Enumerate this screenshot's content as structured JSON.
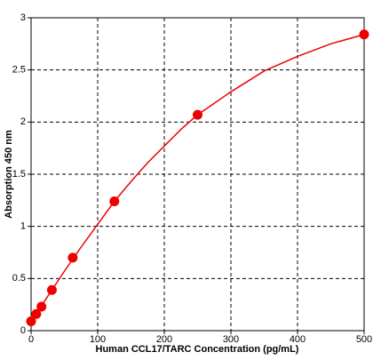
{
  "chart_data": {
    "type": "scatter",
    "xlabel": "Human CCL17/TARC Concentration  (pg/mL)",
    "ylabel": "Absorption 450 nm",
    "xlim": [
      0,
      500
    ],
    "xticks": [
      0,
      100,
      200,
      300,
      400,
      500
    ],
    "ylim": [
      0,
      3
    ],
    "yticks": [
      0,
      0.5,
      1,
      1.5,
      2,
      2.5,
      3
    ],
    "grid": true,
    "series": [
      {
        "mode": "line",
        "color": "#ee0000",
        "x": [
          0,
          25,
          50,
          75,
          100,
          125,
          150,
          175,
          200,
          225,
          250,
          300,
          350,
          400,
          450,
          500
        ],
        "values": [
          0.09,
          0.33,
          0.57,
          0.8,
          1.02,
          1.24,
          1.43,
          1.61,
          1.77,
          1.93,
          2.07,
          2.29,
          2.49,
          2.63,
          2.75,
          2.84
        ]
      },
      {
        "mode": "markers",
        "color": "#ee0000",
        "x": [
          0,
          7.8,
          15.6,
          31.25,
          62.5,
          125,
          250,
          500
        ],
        "values": [
          0.09,
          0.16,
          0.23,
          0.39,
          0.7,
          1.24,
          2.07,
          2.84
        ]
      }
    ]
  }
}
